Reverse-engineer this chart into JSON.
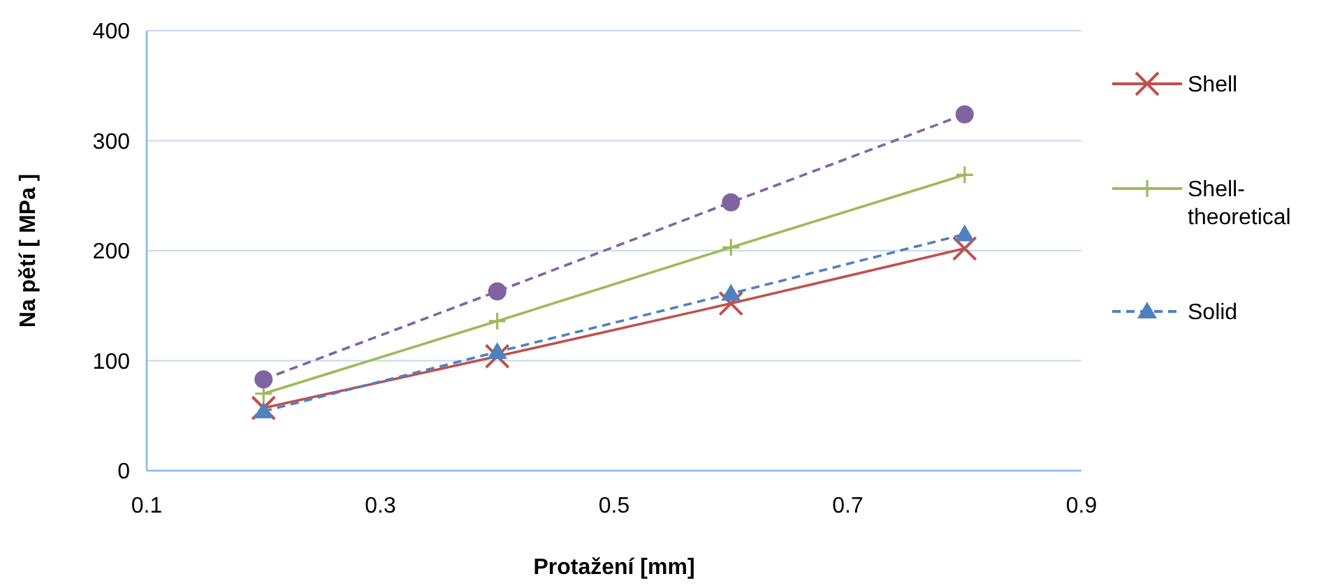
{
  "chart_data": {
    "type": "line",
    "xlabel": "Protažení [mm]",
    "ylabel": "Na pětí [ MPa ]",
    "x": [
      0.2,
      0.4,
      0.6,
      0.8
    ],
    "series": [
      {
        "name": "Shell",
        "color": "#c0504d",
        "marker": "cross",
        "line_style": "solid",
        "values": [
          57,
          104,
          152,
          202
        ]
      },
      {
        "name": "Shell-theoretical",
        "color": "#9bbb59",
        "marker": "plus",
        "line_style": "solid",
        "values": [
          70,
          136,
          203,
          269
        ]
      },
      {
        "name": "Solid",
        "color": "#4f81bd",
        "marker": "triangle",
        "line_style": "dashed",
        "values": [
          54,
          108,
          161,
          215
        ]
      },
      {
        "color": "#8064a2",
        "marker": "circle",
        "line_style": "dashed",
        "values": [
          83,
          163,
          244,
          324
        ]
      }
    ],
    "xlim": [
      0.1,
      0.9
    ],
    "xticks": [
      0.1,
      0.3,
      0.5,
      0.7,
      0.9
    ],
    "ylim": [
      0,
      400
    ],
    "yticks": [
      0,
      100,
      200,
      300,
      400
    ],
    "grid": "y",
    "legend": "right"
  }
}
